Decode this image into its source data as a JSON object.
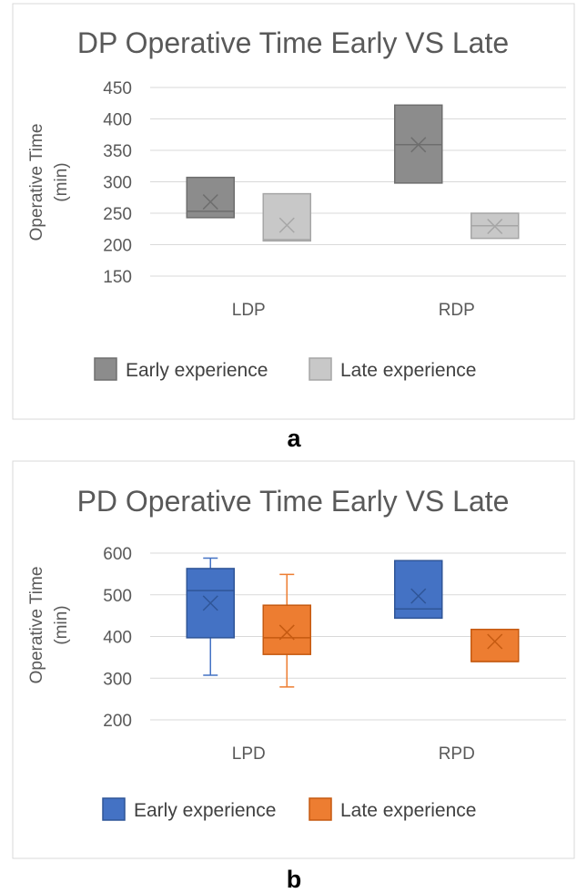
{
  "chart_data": [
    {
      "type": "box",
      "panel_label": "a",
      "title": "DP Operative Time Early VS Late",
      "ylabel_line1": "Operative Time",
      "ylabel_line2": "(min)",
      "ylim": [
        150,
        450
      ],
      "yticks": [
        150,
        200,
        250,
        300,
        350,
        400,
        450
      ],
      "categories": [
        "LDP",
        "RDP"
      ],
      "series": [
        {
          "name": "Early experience",
          "fill": "#8c8c8c",
          "stroke": "#6e6e6e",
          "boxes": [
            {
              "q1": 243,
              "median": 253,
              "q3": 307,
              "mean": 268,
              "whisker_low": null,
              "whisker_high": null
            },
            {
              "q1": 298,
              "median": 359,
              "q3": 422,
              "mean": 359,
              "whisker_low": null,
              "whisker_high": null
            }
          ]
        },
        {
          "name": "Late experience",
          "fill": "#c8c8c8",
          "stroke": "#a6a6a6",
          "boxes": [
            {
              "q1": 206,
              "median": 208,
              "q3": 281,
              "mean": 231,
              "whisker_low": null,
              "whisker_high": null
            },
            {
              "q1": 210,
              "median": 230,
              "q3": 250,
              "mean": 229,
              "whisker_low": null,
              "whisker_high": null
            }
          ]
        }
      ]
    },
    {
      "type": "box",
      "panel_label": "b",
      "title": "PD Operative Time Early VS Late",
      "ylabel_line1": "Operative Time",
      "ylabel_line2": "(min)",
      "ylim": [
        200,
        600
      ],
      "yticks": [
        200,
        300,
        400,
        500,
        600
      ],
      "categories": [
        "LPD",
        "RPD"
      ],
      "series": [
        {
          "name": "Early experience",
          "fill": "#4472c4",
          "stroke": "#2f5597",
          "boxes": [
            {
              "q1": 397,
              "median": 510,
              "q3": 563,
              "mean": 480,
              "whisker_low": 307,
              "whisker_high": 588
            },
            {
              "q1": 444,
              "median": 466,
              "q3": 582,
              "mean": 497,
              "whisker_low": null,
              "whisker_high": null
            }
          ]
        },
        {
          "name": "Late experience",
          "fill": "#ed7d31",
          "stroke": "#c55a11",
          "boxes": [
            {
              "q1": 357,
              "median": 397,
              "q3": 475,
              "mean": 410,
              "whisker_low": 279,
              "whisker_high": 549
            },
            {
              "q1": 340,
              "median": 340,
              "q3": 417,
              "mean": 388,
              "whisker_low": null,
              "whisker_high": null
            }
          ]
        }
      ]
    }
  ]
}
